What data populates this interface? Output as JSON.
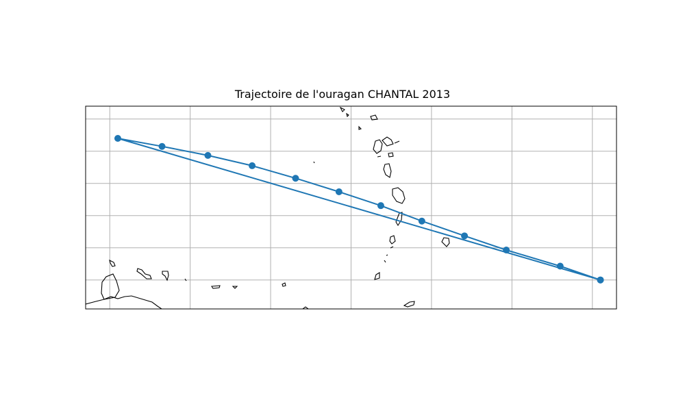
{
  "figure": {
    "title": "Trajectoire de l'ouragan CHANTAL 2013"
  },
  "map": {
    "projection": "PlateCarree",
    "extent": {
      "lon": [
        -64.0,
        -57.4
      ],
      "lat": [
        9.5,
        15.8
      ]
    },
    "gridlines": true,
    "grid_lons": [
      -63.7,
      -62.7,
      -61.7,
      -60.7,
      -59.7,
      -58.7,
      -57.7
    ],
    "grid_lats": [
      10.4,
      11.4,
      12.4,
      13.4,
      14.4,
      15.4
    ],
    "coastline_color": "#000000",
    "grid_color": "#b0b0b0"
  },
  "chart_data": {
    "type": "line",
    "marker": "circle",
    "series": [
      {
        "color": "#1f77b4",
        "points": [
          {
            "lon": -57.6,
            "lat": 10.4
          },
          {
            "lon": -63.6,
            "lat": 14.8
          },
          {
            "lon": -63.05,
            "lat": 14.55
          },
          {
            "lon": -62.48,
            "lat": 14.27
          },
          {
            "lon": -61.93,
            "lat": 13.95
          },
          {
            "lon": -61.39,
            "lat": 13.56
          },
          {
            "lon": -60.85,
            "lat": 13.14
          },
          {
            "lon": -60.33,
            "lat": 12.71
          },
          {
            "lon": -59.82,
            "lat": 12.23
          },
          {
            "lon": -59.29,
            "lat": 11.77
          },
          {
            "lon": -58.77,
            "lat": 11.33
          },
          {
            "lon": -58.1,
            "lat": 10.83
          },
          {
            "lon": -57.6,
            "lat": 10.4
          }
        ]
      }
    ]
  }
}
